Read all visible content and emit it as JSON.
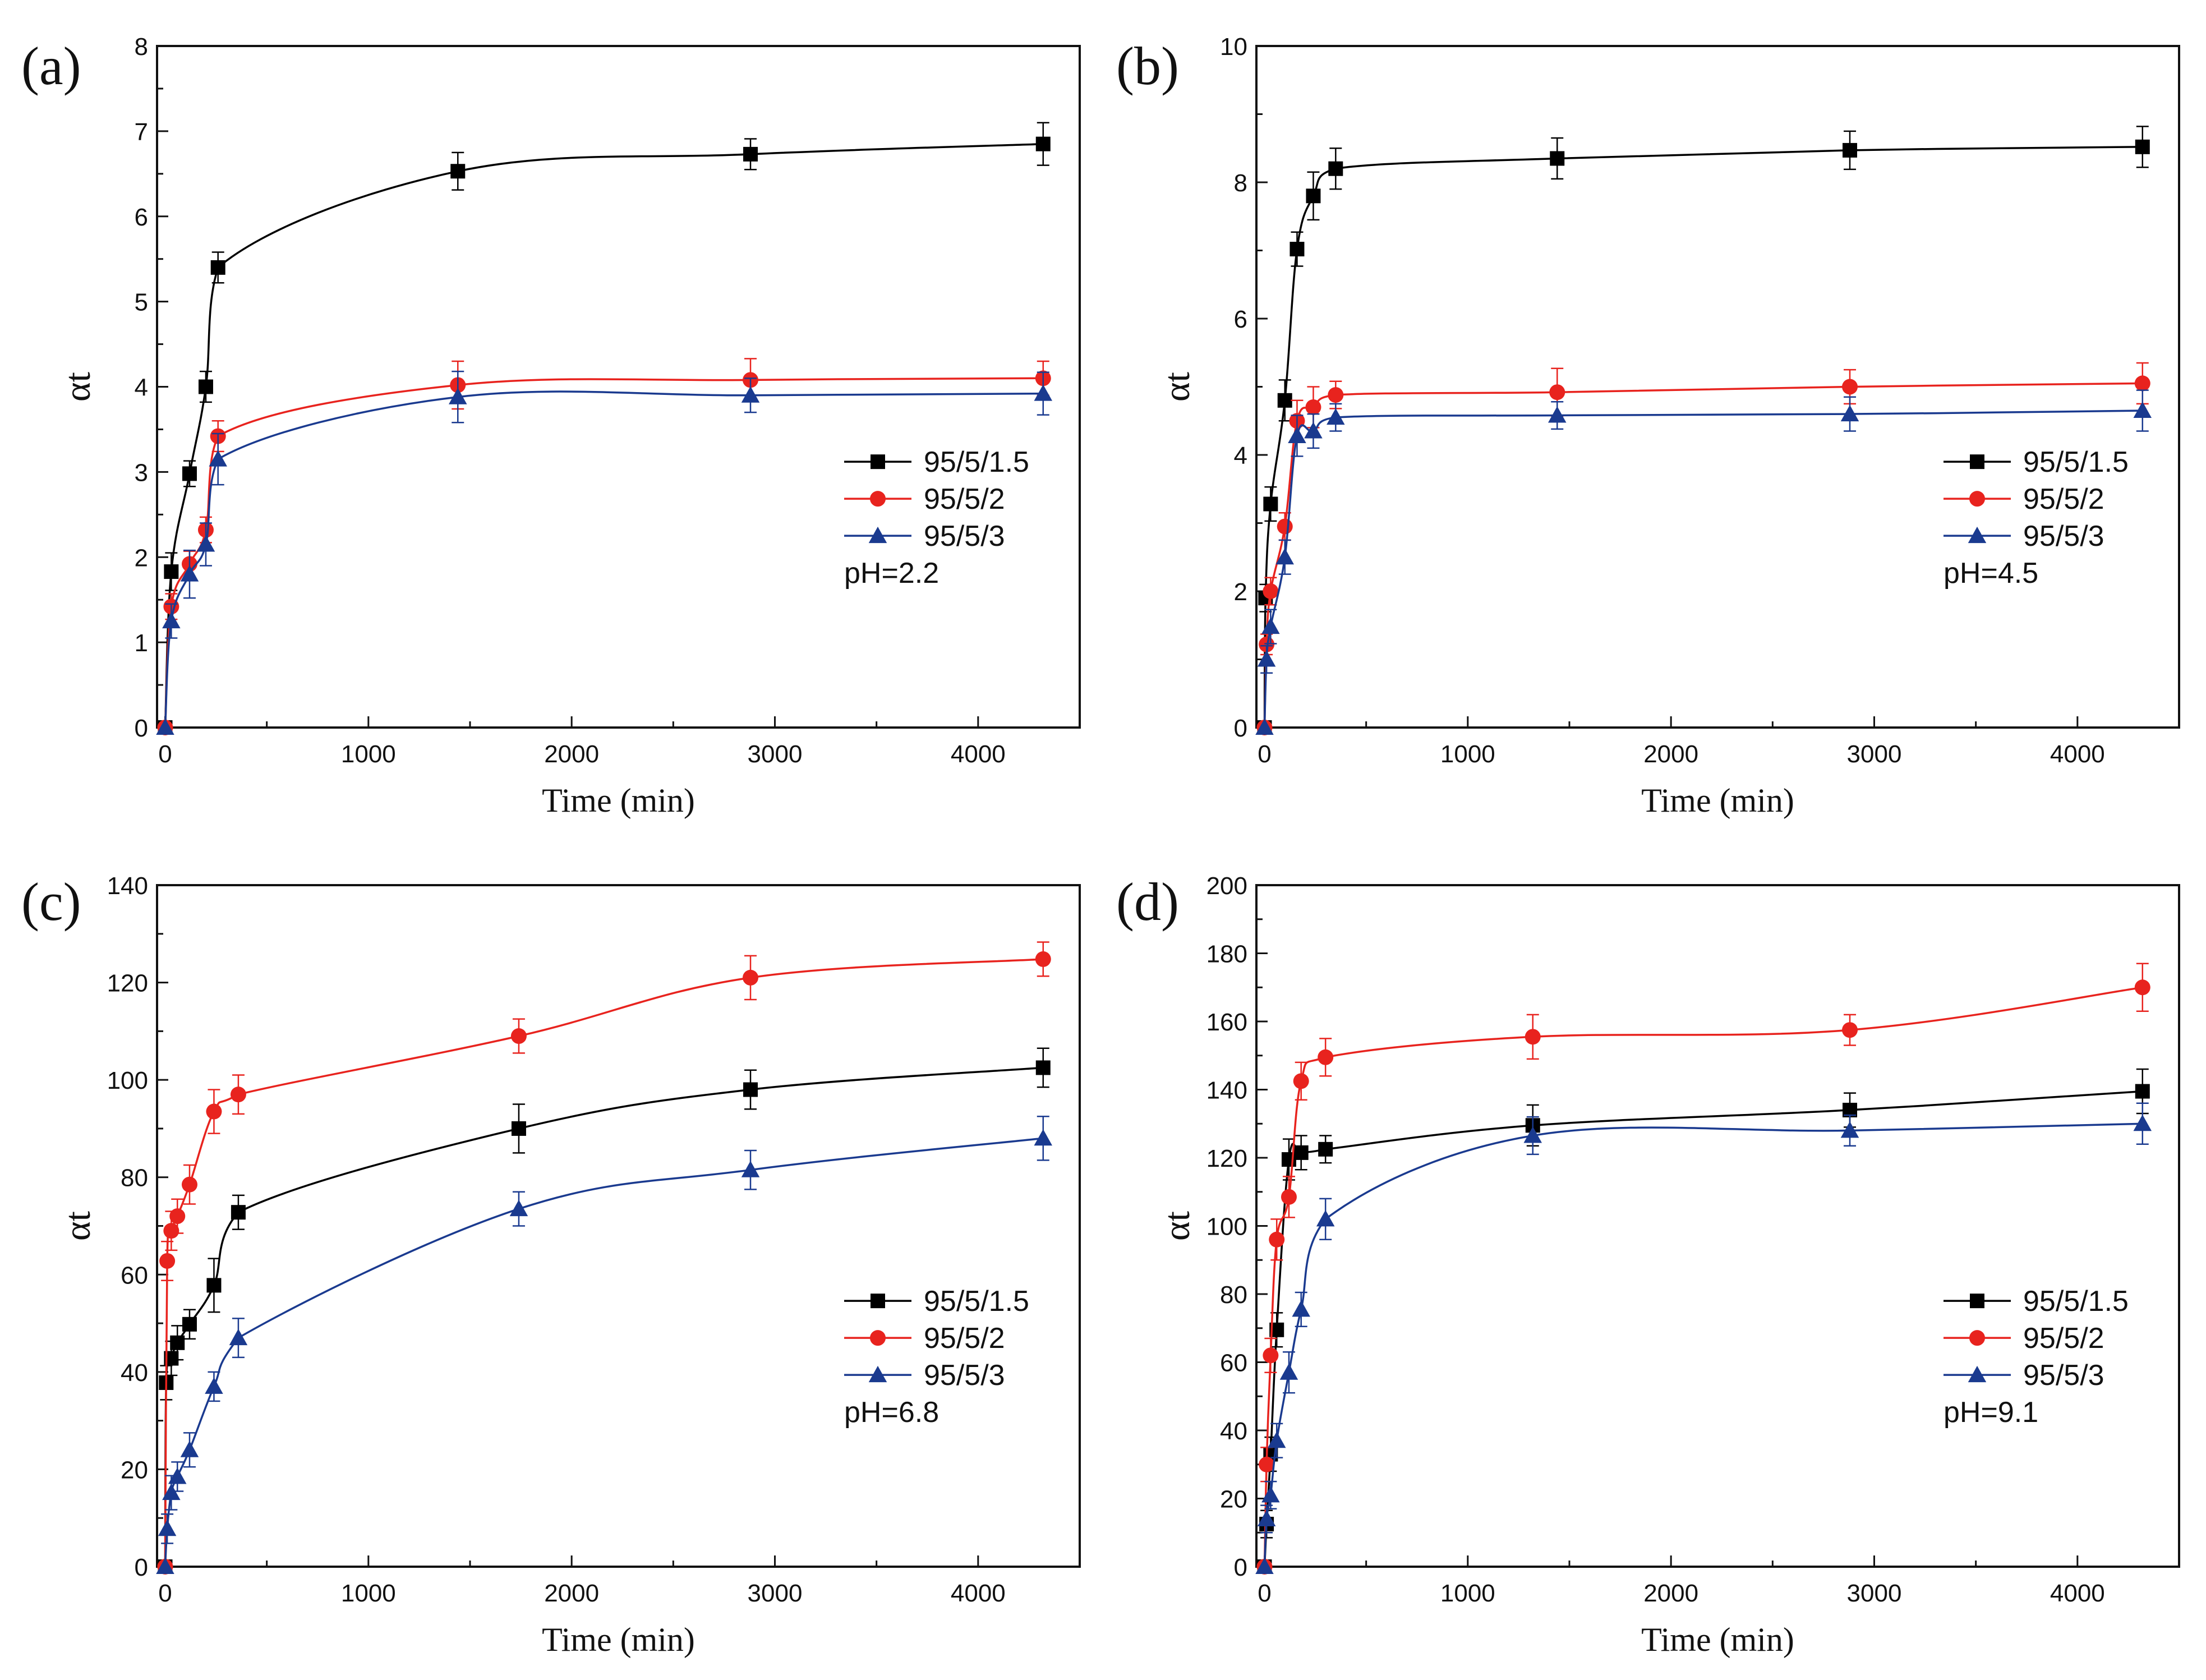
{
  "chart_data": [
    {
      "type": "line",
      "panel_label": "(a)",
      "xlabel": "Time (min)",
      "ylabel": "αt",
      "xlim": [
        -40,
        4500
      ],
      "ylim": [
        0,
        8
      ],
      "xticks": [
        0,
        1000,
        2000,
        3000,
        4000
      ],
      "yticks": [
        0,
        1,
        2,
        3,
        4,
        5,
        6,
        7,
        8
      ],
      "annotation": "pH=2.2",
      "legend_position": "middle-right",
      "series": [
        {
          "name": "95/5/1.5",
          "color": "#000000",
          "marker": "square",
          "x": [
            0,
            30,
            120,
            200,
            260,
            1440,
            2880,
            4320
          ],
          "y": [
            0,
            1.83,
            2.98,
            4.0,
            5.4,
            6.53,
            6.73,
            6.85
          ],
          "err": [
            0,
            0.22,
            0.15,
            0.18,
            0.18,
            0.22,
            0.18,
            0.25
          ]
        },
        {
          "name": "95/5/2",
          "color": "#e8231e",
          "marker": "circle",
          "x": [
            0,
            30,
            120,
            200,
            260,
            1440,
            2880,
            4320
          ],
          "y": [
            0,
            1.42,
            1.92,
            2.32,
            3.42,
            4.02,
            4.08,
            4.1
          ],
          "err": [
            0,
            0.15,
            0.15,
            0.15,
            0.18,
            0.28,
            0.25,
            0.2
          ]
        },
        {
          "name": "95/5/3",
          "color": "#1a3a8f",
          "marker": "triangle",
          "x": [
            0,
            30,
            120,
            200,
            260,
            1440,
            2880,
            4320
          ],
          "y": [
            0,
            1.25,
            1.8,
            2.15,
            3.15,
            3.88,
            3.9,
            3.92
          ],
          "err": [
            0,
            0.2,
            0.28,
            0.25,
            0.3,
            0.3,
            0.2,
            0.25
          ]
        }
      ]
    },
    {
      "type": "line",
      "panel_label": "(b)",
      "xlabel": "Time (min)",
      "ylabel": "αt",
      "xlim": [
        -40,
        4500
      ],
      "ylim": [
        0,
        10
      ],
      "xticks": [
        0,
        1000,
        2000,
        3000,
        4000
      ],
      "yticks": [
        0,
        2,
        4,
        6,
        8,
        10
      ],
      "annotation": "pH=4.5",
      "legend_position": "middle-right",
      "series": [
        {
          "name": "95/5/1.5",
          "color": "#000000",
          "marker": "square",
          "x": [
            0,
            5,
            30,
            100,
            160,
            240,
            350,
            1440,
            2880,
            4320
          ],
          "y": [
            0,
            1.9,
            3.28,
            4.8,
            7.02,
            7.8,
            8.2,
            8.35,
            8.47,
            8.52
          ],
          "err": [
            0,
            0.2,
            0.25,
            0.3,
            0.25,
            0.35,
            0.3,
            0.3,
            0.28,
            0.3
          ]
        },
        {
          "name": "95/5/2",
          "color": "#e8231e",
          "marker": "circle",
          "x": [
            0,
            10,
            30,
            100,
            160,
            240,
            350,
            1440,
            2880,
            4320
          ],
          "y": [
            0,
            1.22,
            2.0,
            2.95,
            4.5,
            4.7,
            4.88,
            4.92,
            5.0,
            5.05
          ],
          "err": [
            0,
            0.15,
            0.2,
            0.2,
            0.3,
            0.3,
            0.2,
            0.35,
            0.25,
            0.3
          ]
        },
        {
          "name": "95/5/3",
          "color": "#1a3a8f",
          "marker": "triangle",
          "x": [
            0,
            10,
            30,
            100,
            160,
            240,
            350,
            1440,
            2880,
            4320
          ],
          "y": [
            0,
            1.0,
            1.48,
            2.5,
            4.28,
            4.35,
            4.55,
            4.58,
            4.6,
            4.65
          ],
          "err": [
            0,
            0.2,
            0.25,
            0.25,
            0.3,
            0.25,
            0.2,
            0.2,
            0.25,
            0.3
          ]
        }
      ]
    },
    {
      "type": "line",
      "panel_label": "(c)",
      "xlabel": "Time (min)",
      "ylabel": "αt",
      "xlim": [
        -40,
        4500
      ],
      "ylim": [
        0,
        140
      ],
      "xticks": [
        0,
        1000,
        2000,
        3000,
        4000
      ],
      "yticks": [
        0,
        20,
        40,
        60,
        80,
        100,
        120,
        140
      ],
      "annotation": "pH=6.8",
      "legend_position": "middle-right",
      "series": [
        {
          "name": "95/5/1.5",
          "color": "#000000",
          "marker": "square",
          "x": [
            0,
            5,
            30,
            60,
            120,
            240,
            360,
            1740,
            2880,
            4320
          ],
          "y": [
            0,
            37.8,
            42.8,
            46.0,
            49.8,
            57.8,
            72.8,
            90.0,
            98.0,
            102.5
          ],
          "err": [
            0,
            3.5,
            3.5,
            3.5,
            3.0,
            5.5,
            3.5,
            5.0,
            4.0,
            4.0
          ]
        },
        {
          "name": "95/5/2",
          "color": "#e8231e",
          "marker": "circle",
          "x": [
            0,
            10,
            30,
            60,
            120,
            240,
            360,
            1740,
            2880,
            4320
          ],
          "y": [
            0,
            62.8,
            69.0,
            72.0,
            78.5,
            93.5,
            97.0,
            109.0,
            121.0,
            124.8
          ],
          "err": [
            0,
            4.0,
            4.0,
            3.5,
            4.0,
            4.5,
            4.0,
            3.5,
            4.5,
            3.5
          ]
        },
        {
          "name": "95/5/3",
          "color": "#1a3a8f",
          "marker": "triangle",
          "x": [
            0,
            10,
            30,
            60,
            120,
            240,
            360,
            1740,
            2880,
            4320
          ],
          "y": [
            0,
            7.8,
            15.2,
            18.5,
            24.0,
            37.0,
            47.0,
            73.5,
            81.5,
            88.0
          ],
          "err": [
            0,
            3.0,
            3.5,
            3.0,
            3.5,
            3.0,
            4.0,
            3.5,
            4.0,
            4.5
          ]
        }
      ]
    },
    {
      "type": "line",
      "panel_label": "(d)",
      "xlabel": "Time (min)",
      "ylabel": "αt",
      "xlim": [
        -40,
        4500
      ],
      "ylim": [
        0,
        200
      ],
      "xticks": [
        0,
        1000,
        2000,
        3000,
        4000
      ],
      "yticks": [
        0,
        20,
        40,
        60,
        80,
        100,
        120,
        140,
        160,
        180,
        200
      ],
      "annotation": "pH=9.1",
      "legend_position": "middle-right",
      "series": [
        {
          "name": "95/5/1.5",
          "color": "#000000",
          "marker": "square",
          "x": [
            0,
            10,
            30,
            60,
            120,
            180,
            300,
            1320,
            2880,
            4320
          ],
          "y": [
            0,
            12.5,
            33.0,
            69.5,
            119.5,
            121.5,
            122.5,
            129.5,
            134.0,
            139.5
          ],
          "err": [
            0,
            4.0,
            5.0,
            5.0,
            6.0,
            5.0,
            4.0,
            6.0,
            5.0,
            6.5
          ]
        },
        {
          "name": "95/5/2",
          "color": "#e8231e",
          "marker": "circle",
          "x": [
            0,
            10,
            30,
            60,
            120,
            180,
            300,
            1320,
            2880,
            4320
          ],
          "y": [
            0,
            30.0,
            62.0,
            96.0,
            108.5,
            142.5,
            149.5,
            155.5,
            157.5,
            170.0
          ],
          "err": [
            0,
            5.0,
            5.0,
            6.0,
            6.0,
            5.5,
            5.5,
            6.5,
            4.5,
            7.0
          ]
        },
        {
          "name": "95/5/3",
          "color": "#1a3a8f",
          "marker": "triangle",
          "x": [
            0,
            10,
            30,
            60,
            120,
            180,
            300,
            1320,
            2880,
            4320
          ],
          "y": [
            0,
            14.0,
            21.0,
            37.0,
            57.0,
            75.5,
            102.0,
            126.5,
            128.0,
            130.0
          ],
          "err": [
            0,
            4.0,
            4.0,
            5.0,
            6.0,
            5.0,
            6.0,
            5.5,
            4.5,
            6.0
          ]
        }
      ]
    }
  ]
}
